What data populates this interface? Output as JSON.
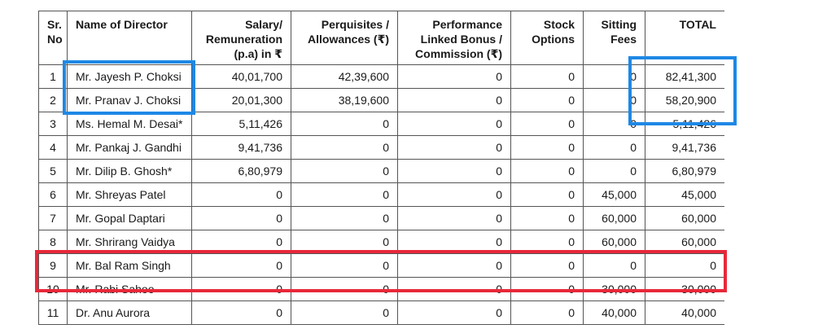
{
  "table": {
    "headers": [
      [
        "Sr.",
        "No"
      ],
      [
        "Name of Director"
      ],
      [
        "Salary/",
        "Remuneration",
        "(p.a) in ₹"
      ],
      [
        "Perquisites /",
        "Allowances (₹)"
      ],
      [
        "Performance",
        "Linked Bonus /",
        "Commission (₹)"
      ],
      [
        "Stock",
        "Options"
      ],
      [
        "Sitting",
        "Fees"
      ],
      [
        "TOTAL"
      ]
    ],
    "rows": [
      [
        "1",
        "Mr. Jayesh P. Choksi",
        "40,01,700",
        "42,39,600",
        "0",
        "0",
        "0",
        "82,41,300"
      ],
      [
        "2",
        "Mr. Pranav J. Choksi",
        "20,01,300",
        "38,19,600",
        "0",
        "0",
        "0",
        "58,20,900"
      ],
      [
        "3",
        "Ms. Hemal M. Desai*",
        "5,11,426",
        "0",
        "0",
        "0",
        "0",
        "5,11,426"
      ],
      [
        "4",
        "Mr. Pankaj J.  Gandhi",
        "9,41,736",
        "0",
        "0",
        "0",
        "0",
        "9,41,736"
      ],
      [
        "5",
        "Mr. Dilip B. Ghosh*",
        "6,80,979",
        "0",
        "0",
        "0",
        "0",
        "6,80,979"
      ],
      [
        "6",
        "Mr. Shreyas Patel",
        "0",
        "0",
        "0",
        "0",
        "45,000",
        "45,000"
      ],
      [
        "7",
        "Mr. Gopal Daptari",
        "0",
        "0",
        "0",
        "0",
        "60,000",
        "60,000"
      ],
      [
        "8",
        "Mr. Shrirang Vaidya",
        "0",
        "0",
        "0",
        "0",
        "60,000",
        "60,000"
      ],
      [
        "9",
        "Mr. Bal Ram Singh",
        "0",
        "0",
        "0",
        "0",
        "0",
        "0"
      ],
      [
        "10",
        "Mr. Rabi Sahoo",
        "0",
        "0",
        "0",
        "0",
        "30,000",
        "30,000"
      ],
      [
        "11",
        "Dr. Anu Aurora",
        "0",
        "0",
        "0",
        "0",
        "40,000",
        "40,000"
      ]
    ]
  },
  "highlight_colors": {
    "blue": "#1e88e5",
    "red": "#e8283a"
  }
}
